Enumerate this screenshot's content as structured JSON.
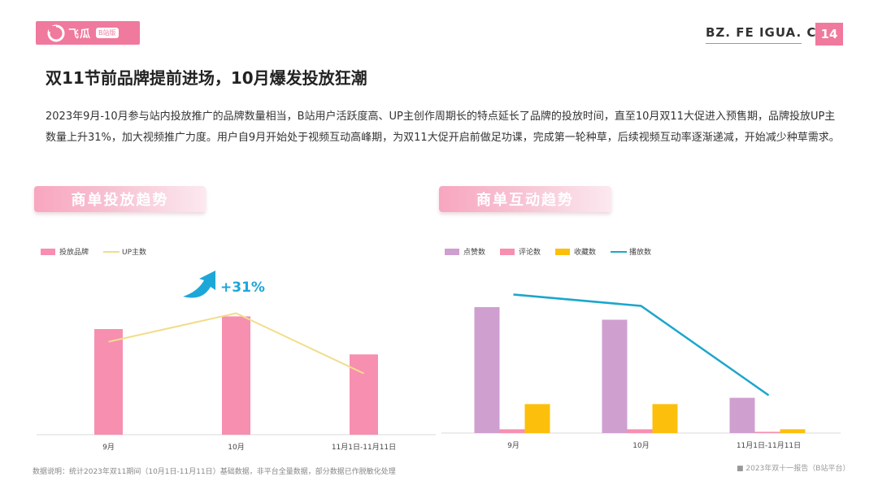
{
  "header": {
    "logo_text": "飞瓜",
    "logo_badge": "B站版",
    "site": "BZ. FE IGUA. CN",
    "page_number": "14"
  },
  "title": "双11节前品牌提前进场，10月爆发投放狂潮",
  "description": "2023年9月-10月参与站内投放推广的品牌数量相当，B站用户活跃度高、UP主创作周期长的特点延长了品牌的投放时间，直至10月双11大促进入预售期，品牌投放UP主数量上升31%，加大视频推广力度。用户自9月开始处于视频互动高峰期，为双11大促开启前做足功课，完成第一轮种草，后续视频互动率逐渐递减，开始减少种草需求。",
  "sections": {
    "left_title": "商单投放趋势",
    "right_title": "商单互动趋势"
  },
  "footnote": "数据说明：统计2023年双11期间（10月1日-11月11日）基础数据，非平台全量数据，部分数据已作脱敏化处理",
  "brandnote": "■ 2023年双十一报告（B站平台）",
  "chart_data": [
    {
      "type": "bar",
      "categories": [
        "9月",
        "10月",
        "11月1日-11月11日"
      ],
      "series": [
        {
          "name": "投放品牌",
          "type": "bar",
          "color": "#f78fb0",
          "values": [
            100,
            112,
            76
          ]
        },
        {
          "name": "UP主数",
          "type": "line",
          "color": "#f1dd8a",
          "values": [
            88,
            115,
            58
          ]
        }
      ],
      "annotation": "+31%",
      "annotation_color": "#1da7d9",
      "ylim": [
        0,
        160
      ]
    },
    {
      "type": "bar",
      "categories": [
        "9月",
        "10月",
        "11月1日-11月11日"
      ],
      "series": [
        {
          "name": "点赞数",
          "type": "bar",
          "color": "#cf9fd0",
          "values": [
            100,
            90,
            28
          ]
        },
        {
          "name": "评论数",
          "type": "bar",
          "color": "#f78fb0",
          "values": [
            3,
            3,
            1
          ]
        },
        {
          "name": "收藏数",
          "type": "bar",
          "color": "#fcc00c",
          "values": [
            23,
            23,
            3
          ]
        },
        {
          "name": "播放数",
          "type": "line",
          "color": "#1ba6cc",
          "values": [
            110,
            101,
            30
          ]
        }
      ],
      "ylim": [
        0,
        160
      ]
    }
  ]
}
